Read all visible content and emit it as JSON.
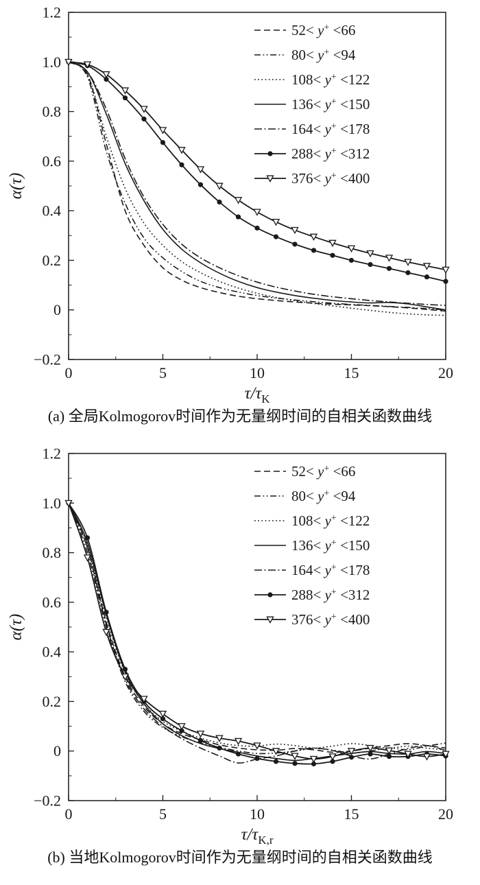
{
  "page": {
    "background": "#ffffff",
    "ink": "#1a1a1a"
  },
  "chart_data": [
    {
      "type": "line",
      "panel": "a",
      "title": "",
      "caption": "(a) 全局Kolmogorov时间作为无量纲时间的自相关函数曲线",
      "ylabel": "α(τ)",
      "xlabel_main": "τ/τ",
      "xlabel_sub": "K",
      "xlim": [
        0,
        20
      ],
      "ylim": [
        -0.2,
        1.2
      ],
      "xticks": [
        0,
        5,
        10,
        15,
        20
      ],
      "xtick_labels": [
        "0",
        "5",
        "10",
        "15",
        "20"
      ],
      "yticks": [
        -0.2,
        0,
        0.2,
        0.4,
        0.6,
        0.8,
        1.0,
        1.2
      ],
      "ytick_labels": [
        "−0.2",
        "0",
        "0.2",
        "0.4",
        "0.6",
        "0.8",
        "1.0",
        "1.2"
      ],
      "grid": false,
      "legend_position": "top-right",
      "x": [
        0,
        1,
        2,
        3,
        4,
        5,
        6,
        7,
        8,
        9,
        10,
        11,
        12,
        13,
        14,
        15,
        16,
        17,
        18,
        19,
        20
      ],
      "series": [
        {
          "name": "52< y+ <66",
          "label_left": "52<",
          "label_right": "<66",
          "style": "dash",
          "marker": "none",
          "values": [
            1.0,
            0.95,
            0.67,
            0.4,
            0.26,
            0.17,
            0.12,
            0.09,
            0.07,
            0.055,
            0.045,
            0.038,
            0.032,
            0.027,
            0.023,
            0.02,
            0.017,
            0.013,
            0.008,
            0.002,
            -0.005
          ]
        },
        {
          "name": "80< y+ <94",
          "label_left": "80<",
          "label_right": "<94",
          "style": "dashdotdot",
          "marker": "none",
          "values": [
            1.0,
            0.94,
            0.64,
            0.43,
            0.29,
            0.21,
            0.155,
            0.115,
            0.09,
            0.072,
            0.058,
            0.048,
            0.04,
            0.033,
            0.027,
            0.022,
            0.018,
            0.014,
            0.01,
            0.005,
            0.0
          ]
        },
        {
          "name": "108< y+ <122",
          "label_left": "108<",
          "label_right": "<122",
          "style": "dot",
          "marker": "none",
          "values": [
            1.0,
            0.95,
            0.7,
            0.49,
            0.35,
            0.26,
            0.195,
            0.15,
            0.115,
            0.088,
            0.067,
            0.05,
            0.037,
            0.026,
            0.016,
            0.007,
            -0.002,
            -0.01,
            -0.016,
            -0.02,
            -0.022
          ]
        },
        {
          "name": "136< y+ <150",
          "label_left": "136<",
          "label_right": "<150",
          "style": "solid",
          "marker": "none",
          "values": [
            1.0,
            0.96,
            0.79,
            0.59,
            0.44,
            0.325,
            0.245,
            0.19,
            0.148,
            0.115,
            0.09,
            0.072,
            0.058,
            0.047,
            0.038,
            0.032,
            0.028,
            0.03,
            0.024,
            0.012,
            0.0
          ]
        },
        {
          "name": "164< y+ <178",
          "label_left": "164<",
          "label_right": "<178",
          "style": "dashdot",
          "marker": "none",
          "values": [
            1.0,
            0.96,
            0.81,
            0.61,
            0.455,
            0.345,
            0.265,
            0.21,
            0.17,
            0.138,
            0.112,
            0.092,
            0.076,
            0.063,
            0.053,
            0.045,
            0.038,
            0.032,
            0.027,
            0.022,
            0.018
          ]
        },
        {
          "name": "288< y+ <312",
          "label_left": "288<",
          "label_right": "<312",
          "style": "solid",
          "marker": "circle",
          "values": [
            1.0,
            0.985,
            0.93,
            0.855,
            0.77,
            0.675,
            0.585,
            0.505,
            0.435,
            0.375,
            0.33,
            0.295,
            0.265,
            0.24,
            0.22,
            0.2,
            0.183,
            0.167,
            0.15,
            0.133,
            0.115
          ]
        },
        {
          "name": "376< y+ <400",
          "label_left": "376<",
          "label_right": "<400",
          "style": "solid",
          "marker": "triangle-down",
          "values": [
            1.0,
            0.99,
            0.95,
            0.885,
            0.81,
            0.725,
            0.645,
            0.567,
            0.5,
            0.443,
            0.395,
            0.355,
            0.322,
            0.295,
            0.27,
            0.248,
            0.228,
            0.21,
            0.193,
            0.177,
            0.162
          ]
        }
      ]
    },
    {
      "type": "line",
      "panel": "b",
      "title": "",
      "caption": "(b) 当地Kolmogorov时间作为无量纲时间的自相关函数曲线",
      "ylabel": "α(τ)",
      "xlabel_main": "τ/τ",
      "xlabel_sub": "K,r",
      "xlim": [
        0,
        20
      ],
      "ylim": [
        -0.2,
        1.2
      ],
      "xticks": [
        0,
        5,
        10,
        15,
        20
      ],
      "xtick_labels": [
        "0",
        "5",
        "10",
        "15",
        "20"
      ],
      "yticks": [
        -0.2,
        0,
        0.2,
        0.4,
        0.6,
        0.8,
        1.0,
        1.2
      ],
      "ytick_labels": [
        "−0.2",
        "0",
        "0.2",
        "0.4",
        "0.6",
        "0.8",
        "1.0",
        "1.2"
      ],
      "grid": false,
      "legend_position": "top-right",
      "x": [
        0,
        1,
        2,
        3,
        4,
        5,
        6,
        7,
        8,
        9,
        10,
        11,
        12,
        13,
        14,
        15,
        16,
        17,
        18,
        19,
        20
      ],
      "series": [
        {
          "name": "52< y+ <66",
          "label_left": "52<",
          "label_right": "<66",
          "style": "dash",
          "marker": "none",
          "values": [
            1.0,
            0.82,
            0.52,
            0.3,
            0.18,
            0.11,
            0.07,
            0.045,
            0.025,
            0.012,
            0.005,
            0.003,
            0.01,
            0.005,
            -0.005,
            0.0,
            0.012,
            0.022,
            0.03,
            0.022,
            0.012
          ]
        },
        {
          "name": "80< y+ <94",
          "label_left": "80<",
          "label_right": "<94",
          "style": "dashdotdot",
          "marker": "none",
          "values": [
            1.0,
            0.8,
            0.5,
            0.28,
            0.16,
            0.095,
            0.058,
            0.032,
            0.015,
            0.0,
            -0.01,
            -0.008,
            0.0,
            0.01,
            0.004,
            -0.008,
            0.0,
            0.012,
            0.005,
            0.02,
            0.032
          ]
        },
        {
          "name": "108< y+ <122",
          "label_left": "108<",
          "label_right": "<122",
          "style": "dot",
          "marker": "none",
          "values": [
            1.0,
            0.83,
            0.54,
            0.315,
            0.19,
            0.12,
            0.08,
            0.052,
            0.033,
            0.022,
            0.02,
            0.028,
            0.022,
            0.012,
            0.02,
            0.03,
            0.022,
            0.012,
            0.02,
            0.012,
            0.004
          ]
        },
        {
          "name": "136< y+ <150",
          "label_left": "136<",
          "label_right": "<150",
          "style": "solid",
          "marker": "none",
          "values": [
            1.0,
            0.84,
            0.55,
            0.32,
            0.19,
            0.11,
            0.062,
            0.03,
            0.01,
            -0.005,
            -0.02,
            -0.03,
            -0.038,
            -0.03,
            -0.02,
            -0.01,
            -0.002,
            -0.01,
            -0.012,
            -0.002,
            -0.01
          ]
        },
        {
          "name": "164< y+ <178",
          "label_left": "164<",
          "label_right": "<178",
          "style": "dashdot",
          "marker": "none",
          "values": [
            1.0,
            0.82,
            0.51,
            0.29,
            0.17,
            0.1,
            0.05,
            0.012,
            -0.02,
            -0.048,
            -0.032,
            -0.02,
            0.0,
            0.012,
            0.002,
            -0.02,
            -0.032,
            -0.012,
            0.01,
            0.022,
            0.002
          ]
        },
        {
          "name": "288< y+ <312",
          "label_left": "288<",
          "label_right": "<312",
          "style": "solid",
          "marker": "circle",
          "values": [
            1.0,
            0.86,
            0.56,
            0.33,
            0.2,
            0.13,
            0.082,
            0.042,
            0.012,
            -0.012,
            -0.03,
            -0.042,
            -0.05,
            -0.052,
            -0.042,
            -0.025,
            -0.012,
            -0.022,
            -0.022,
            -0.012,
            -0.02
          ]
        },
        {
          "name": "376< y+ <400",
          "label_left": "376<",
          "label_right": "<400",
          "style": "solid",
          "marker": "triangle-down",
          "values": [
            1.0,
            0.78,
            0.48,
            0.3,
            0.21,
            0.15,
            0.1,
            0.07,
            0.052,
            0.04,
            0.022,
            0.0,
            -0.02,
            -0.032,
            -0.022,
            0.0,
            0.012,
            0.002,
            -0.012,
            -0.022,
            -0.012
          ]
        }
      ]
    }
  ]
}
